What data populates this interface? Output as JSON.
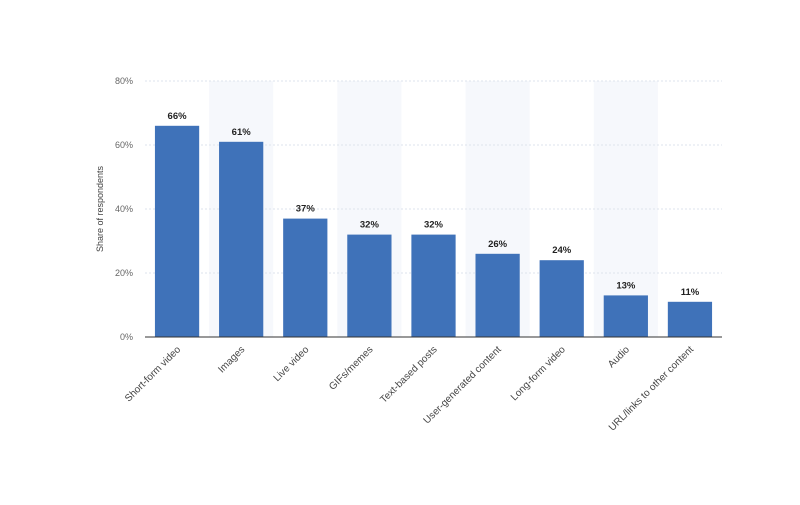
{
  "chart_data": {
    "type": "bar",
    "categories": [
      "Short-form video",
      "Images",
      "Live video",
      "GIFs/memes",
      "Text-based posts",
      "User-generated content",
      "Long-form video",
      "Audio",
      "URL/links to other content"
    ],
    "values": [
      66,
      61,
      37,
      32,
      32,
      26,
      24,
      13,
      11
    ],
    "data_labels": [
      "66%",
      "61%",
      "37%",
      "32%",
      "32%",
      "26%",
      "24%",
      "13%",
      "11%"
    ],
    "ylabel": "Share of respondents",
    "xlabel": "",
    "ylim": [
      0,
      80
    ],
    "yticks": [
      0,
      20,
      40,
      60,
      80
    ],
    "ytick_labels": [
      "0%",
      "20%",
      "40%",
      "60%",
      "80%"
    ],
    "grid": true,
    "bar_color": "#3f72b9"
  }
}
